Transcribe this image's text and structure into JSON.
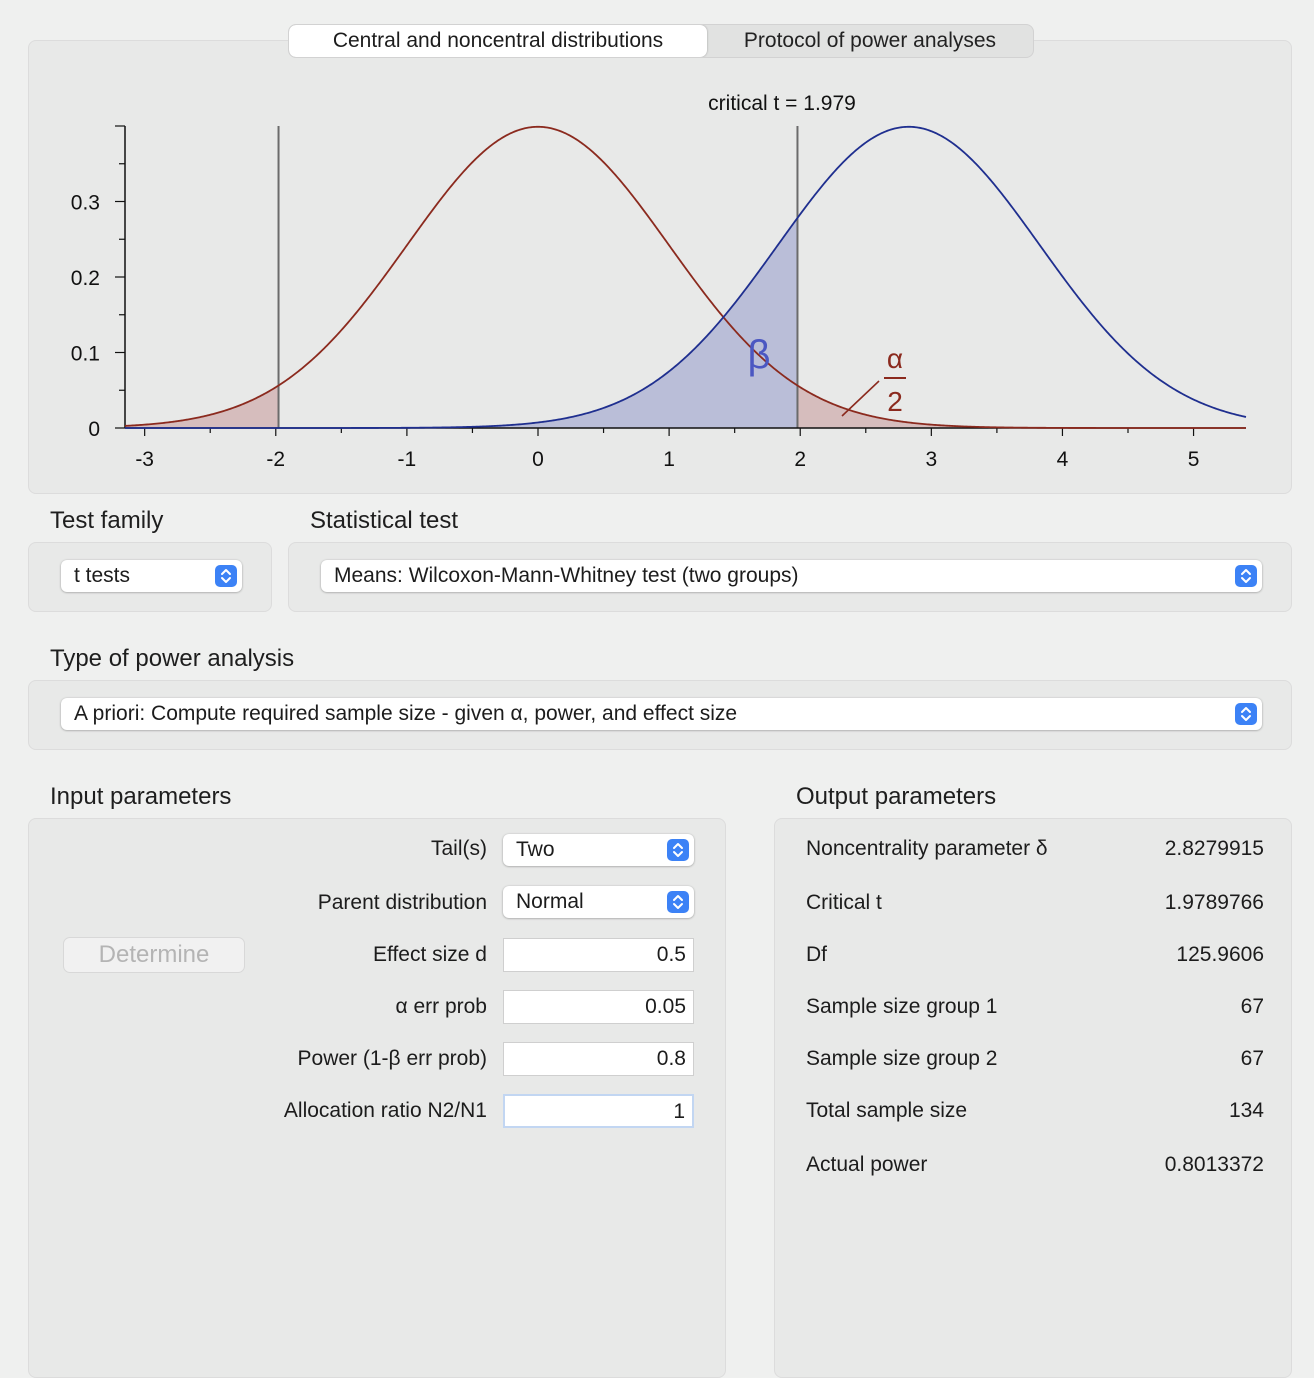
{
  "tabs": [
    {
      "label": "Central and noncentral distributions",
      "active": true
    },
    {
      "label": "Protocol of power analyses",
      "active": false
    }
  ],
  "chart_data": {
    "type": "area",
    "annotation_critical": "critical t = 1.979",
    "beta_label": "β",
    "alpha_numerator": "α",
    "alpha_denominator": "2",
    "x_ticks": [
      "-3",
      "-2",
      "-1",
      "0",
      "1",
      "2",
      "3",
      "4",
      "5"
    ],
    "y_ticks": [
      "0",
      "0.1",
      "0.2",
      "0.3"
    ],
    "xlim": [
      -3.15,
      5.4
    ],
    "ylim": [
      0,
      0.4
    ],
    "critical_t": 1.979,
    "noncentrality": 2.828,
    "series": [
      {
        "kind": "central t",
        "df": 125.96,
        "mean": 0,
        "color": "#8b2a1e"
      },
      {
        "kind": "noncentral t",
        "df": 125.96,
        "mean": 2.828,
        "color": "#1f2f8f"
      }
    ]
  },
  "test_family": {
    "label": "Test family",
    "value": "t tests"
  },
  "statistical_test": {
    "label": "Statistical test",
    "value": "Means: Wilcoxon-Mann-Whitney test (two groups)"
  },
  "analysis_type": {
    "label": "Type of power analysis",
    "value": "A priori: Compute required sample size - given α, power, and effect size"
  },
  "input": {
    "title": "Input parameters",
    "determine_label": "Determine",
    "tails": {
      "label": "Tail(s)",
      "value": "Two"
    },
    "parent": {
      "label": "Parent distribution",
      "value": "Normal"
    },
    "effect": {
      "label": "Effect size d",
      "value": "0.5"
    },
    "alpha": {
      "label": "α err prob",
      "value": "0.05"
    },
    "power": {
      "label": "Power (1-β err prob)",
      "value": "0.8"
    },
    "ratio": {
      "label": "Allocation ratio N2/N1",
      "value": "1"
    }
  },
  "output": {
    "title": "Output parameters",
    "rows": [
      {
        "label": "Noncentrality parameter δ",
        "value": "2.8279915"
      },
      {
        "label": "Critical t",
        "value": "1.9789766"
      },
      {
        "label": "Df",
        "value": "125.9606"
      },
      {
        "label": "Sample size group 1",
        "value": "67"
      },
      {
        "label": "Sample size group 2",
        "value": "67"
      },
      {
        "label": "Total sample size",
        "value": "134"
      },
      {
        "label": "Actual power",
        "value": "0.8013372"
      }
    ]
  }
}
